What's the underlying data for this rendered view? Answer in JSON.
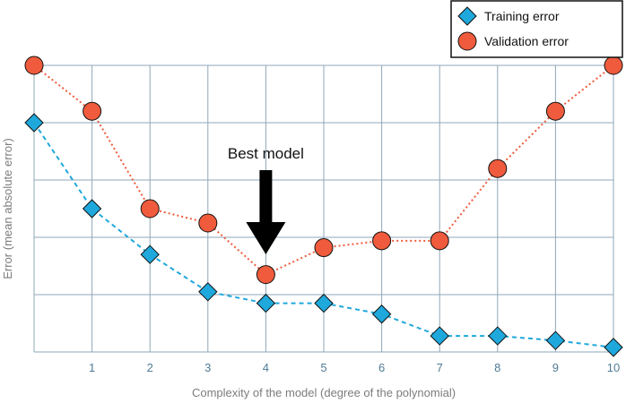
{
  "chart_data": {
    "type": "line",
    "xlabel": "Complexity of the model (degree of the polynomial)",
    "ylabel": "Error (mean absolute error)",
    "x": [
      0,
      1,
      2,
      3,
      4,
      5,
      6,
      7,
      8,
      9,
      10
    ],
    "x_tick_labels": [
      "1",
      "2",
      "3",
      "4",
      "5",
      "6",
      "7",
      "8",
      "9",
      "10"
    ],
    "ylim": [
      0,
      5
    ],
    "y_ticks": [
      0,
      1,
      2,
      3,
      4,
      5
    ],
    "grid": true,
    "legend_position": "top-right",
    "series": [
      {
        "name": "Training error",
        "marker": "diamond",
        "line_style": "dashed",
        "color": "#1fa8dc",
        "values": [
          4.0,
          2.5,
          1.7,
          1.05,
          0.85,
          0.85,
          0.66,
          0.28,
          0.28,
          0.2,
          0.08
        ]
      },
      {
        "name": "Validation error",
        "marker": "circle",
        "line_style": "dotted",
        "color": "#ef5b3c",
        "values": [
          5.0,
          4.2,
          2.5,
          2.25,
          1.35,
          1.82,
          1.94,
          1.94,
          3.2,
          4.2,
          5.0
        ]
      }
    ],
    "annotations": [
      {
        "text": "Best model",
        "x": 4
      }
    ]
  },
  "colors": {
    "grid": "#8fa7b8",
    "marker_stroke": "#111111",
    "arrow": "#000000"
  }
}
